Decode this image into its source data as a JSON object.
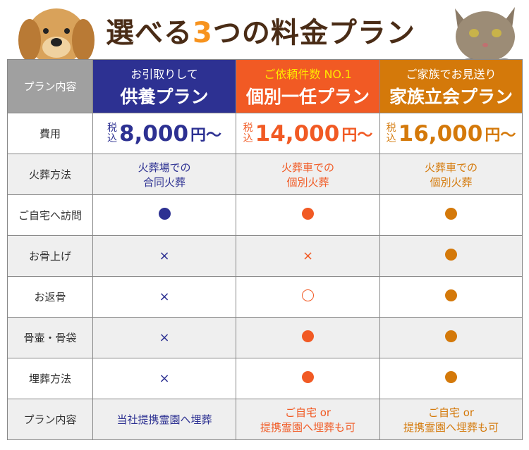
{
  "title": {
    "pre": "選べる",
    "num": "3",
    "post": "つの料金プラン"
  },
  "header": {
    "label": "プラン内容",
    "plans": [
      {
        "sub": "お引取りして",
        "name": "供養プラン"
      },
      {
        "sub": "ご依頼件数 NO.1",
        "name": "個別一任プラン"
      },
      {
        "sub": "ご家族でお見送り",
        "name": "家族立会プラン"
      }
    ]
  },
  "colors": {
    "plan1": "#2d3192",
    "plan2": "#f15a24",
    "plan3": "#d4790a"
  },
  "fee": {
    "label": "費用",
    "tax": "税込",
    "prices": [
      "8,000",
      "14,000",
      "16,000"
    ],
    "suffix": "円～"
  },
  "cremation": {
    "label": "火葬方法",
    "values": [
      [
        "火葬場での",
        "合同火葬"
      ],
      [
        "火葬車での",
        "個別火葬"
      ],
      [
        "火葬車での",
        "個別火葬"
      ]
    ]
  },
  "rows": [
    {
      "label": "ご自宅へ訪問",
      "marks": [
        "●",
        "●",
        "●"
      ]
    },
    {
      "label": "お骨上げ",
      "marks": [
        "×",
        "×",
        "●"
      ]
    },
    {
      "label": "お返骨",
      "marks": [
        "×",
        "○",
        "●"
      ]
    },
    {
      "label": "骨壷・骨袋",
      "marks": [
        "×",
        "●",
        "●"
      ]
    },
    {
      "label": "埋葬方法",
      "marks": [
        "×",
        "●",
        "●"
      ]
    }
  ],
  "plan_content": {
    "label": "プラン内容",
    "values": [
      [
        "当社提携霊園へ埋葬"
      ],
      [
        "ご自宅 or",
        "提携霊園へ埋葬も可"
      ],
      [
        "ご自宅 or",
        "提携霊園へ埋葬も可"
      ]
    ]
  }
}
